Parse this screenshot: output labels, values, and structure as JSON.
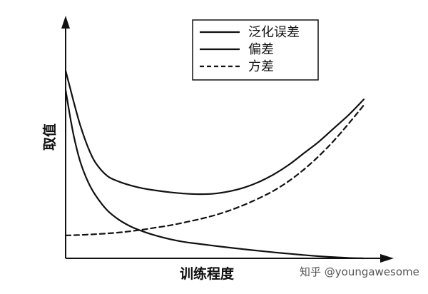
{
  "chart_data": {
    "type": "line",
    "xlabel": "训练程度",
    "ylabel": "取值",
    "x": [
      0.0,
      0.015,
      0.03,
      0.05,
      0.075,
      0.1,
      0.14,
      0.18,
      0.22,
      0.26,
      0.3,
      0.35,
      0.4,
      0.45,
      0.5,
      0.55,
      0.6,
      0.65,
      0.7,
      0.75,
      0.8,
      0.85,
      0.9,
      0.95,
      1.0
    ],
    "series": [
      {
        "name": "泛化误差",
        "style": "solid",
        "values": [
          0.98,
          0.89,
          0.8,
          0.69,
          0.58,
          0.5,
          0.43,
          0.4,
          0.38,
          0.365,
          0.355,
          0.345,
          0.338,
          0.335,
          0.338,
          0.35,
          0.37,
          0.4,
          0.44,
          0.49,
          0.55,
          0.61,
          0.68,
          0.75,
          0.83
        ]
      },
      {
        "name": "偏差",
        "style": "solid",
        "values": [
          0.88,
          0.74,
          0.62,
          0.5,
          0.4,
          0.33,
          0.25,
          0.2,
          0.165,
          0.14,
          0.12,
          0.1,
          0.085,
          0.075,
          0.065,
          0.056,
          0.047,
          0.039,
          0.031,
          0.024,
          0.017,
          0.011,
          0.006,
          0.002,
          0.0
        ]
      },
      {
        "name": "方差",
        "style": "dashed",
        "values": [
          0.12,
          0.12,
          0.121,
          0.122,
          0.124,
          0.126,
          0.13,
          0.135,
          0.142,
          0.15,
          0.16,
          0.172,
          0.188,
          0.205,
          0.225,
          0.25,
          0.28,
          0.315,
          0.355,
          0.405,
          0.465,
          0.535,
          0.615,
          0.705,
          0.8
        ]
      }
    ],
    "xlim": [
      0,
      1
    ],
    "ylim": [
      0,
      1.2
    ],
    "grid": false,
    "legend_position": "top-right"
  },
  "watermark": "知乎 @youngawesome",
  "colors": {
    "line": "#111111",
    "background": "#ffffff",
    "watermark": "#555555"
  }
}
